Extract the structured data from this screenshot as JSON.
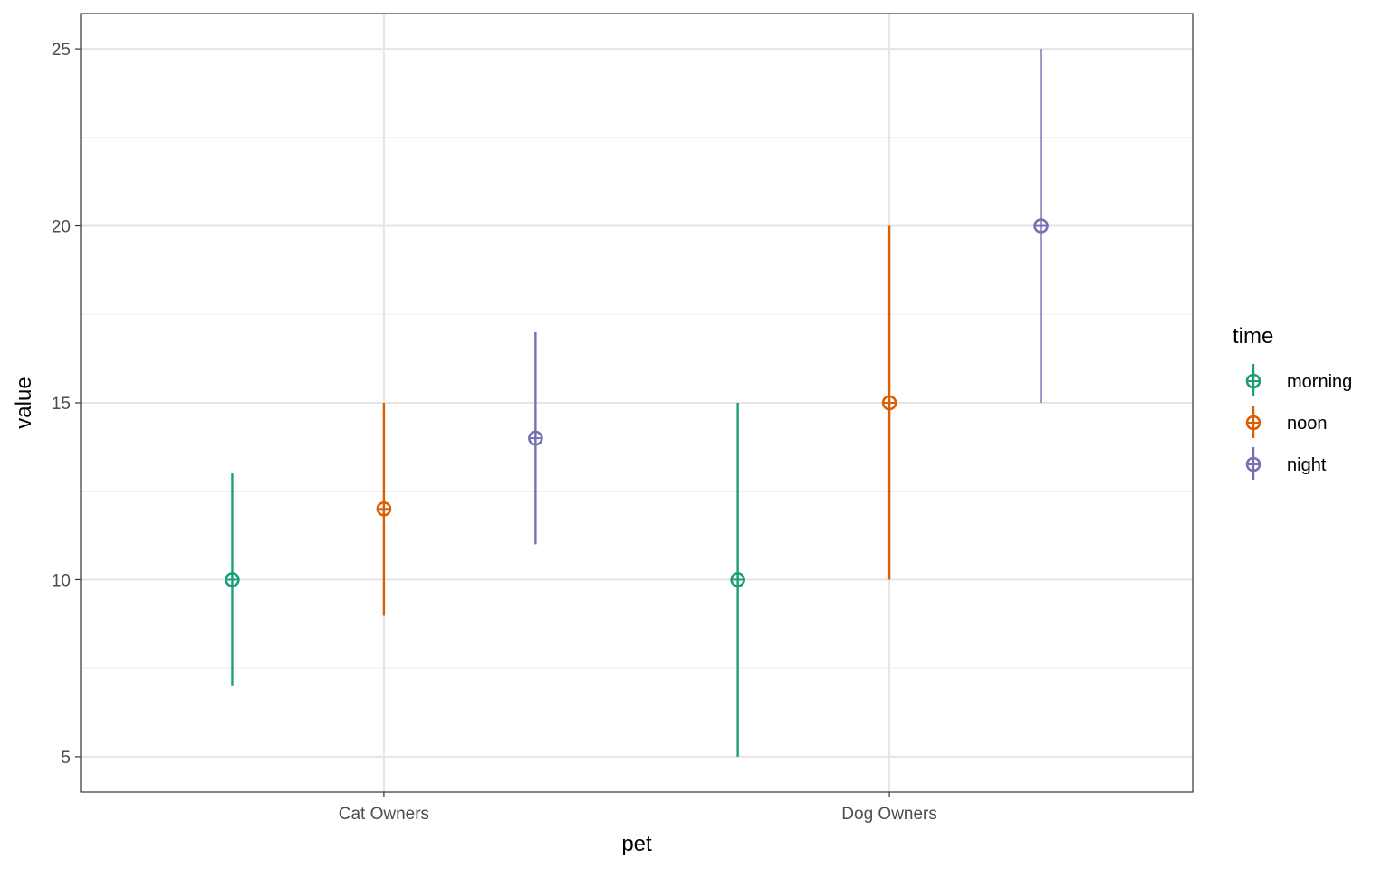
{
  "chart_data": {
    "type": "pointrange",
    "xlabel": "pet",
    "ylabel": "value",
    "categories": [
      "Cat Owners",
      "Dog Owners"
    ],
    "ylim": [
      4,
      26
    ],
    "yticks": [
      5,
      10,
      15,
      20,
      25
    ],
    "grid": true,
    "legend": {
      "title": "time",
      "placement": "right"
    },
    "series": [
      {
        "name": "morning",
        "color": "#1B9E77",
        "values": [
          10,
          10
        ],
        "lower": [
          7,
          5
        ],
        "upper": [
          13,
          15
        ]
      },
      {
        "name": "noon",
        "color": "#D95F02",
        "values": [
          12,
          15
        ],
        "lower": [
          9,
          10
        ],
        "upper": [
          15,
          20
        ]
      },
      {
        "name": "night",
        "color": "#7570B3",
        "values": [
          14,
          20
        ],
        "lower": [
          11,
          15
        ],
        "upper": [
          17,
          25
        ]
      }
    ]
  }
}
